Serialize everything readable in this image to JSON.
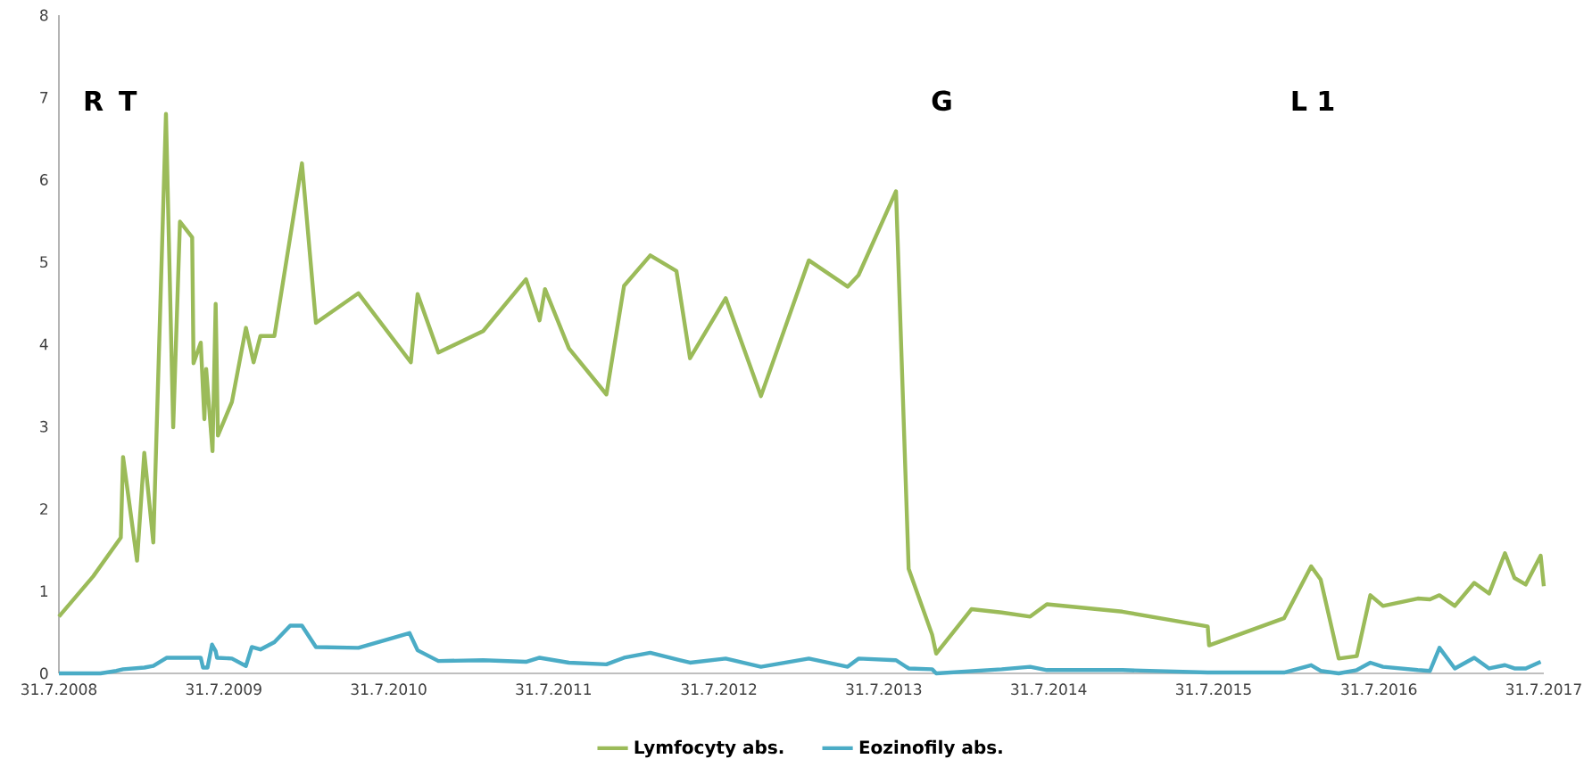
{
  "chart_data": {
    "type": "line",
    "xlim": [
      "2008-07-31",
      "2017-07-31"
    ],
    "xticks": [
      {
        "value": "2008-07-31",
        "label": "31.7.2008"
      },
      {
        "value": "2009-07-31",
        "label": "31.7.2009"
      },
      {
        "value": "2010-07-31",
        "label": "31.7.2010"
      },
      {
        "value": "2011-07-31",
        "label": "31.7.2011"
      },
      {
        "value": "2012-07-31",
        "label": "31.7.2012"
      },
      {
        "value": "2013-07-31",
        "label": "31.7.2013"
      },
      {
        "value": "2014-07-31",
        "label": "31.7.2014"
      },
      {
        "value": "2015-07-31",
        "label": "31.7.2015"
      },
      {
        "value": "2016-07-31",
        "label": "31.7.2016"
      },
      {
        "value": "2017-07-31",
        "label": "31.7.2017"
      }
    ],
    "ylim": [
      0,
      8
    ],
    "yticks": [
      0,
      1,
      2,
      3,
      4,
      5,
      6,
      7,
      8
    ],
    "grid": false,
    "legend": "bottom",
    "marker": "none",
    "line_style": "solid",
    "annotations": [
      "R",
      "T",
      "G",
      "L 1"
    ],
    "series": [
      {
        "name": "Lymfocyty abs.",
        "color": "#9bbb59",
        "x": [
          "2008-07-31",
          "2008-10-15",
          "2008-12-15",
          "2008-12-20",
          "2009-01-20",
          "2009-02-05",
          "2009-02-25",
          "2009-03-25",
          "2009-04-10",
          "2009-04-25",
          "2009-05-22",
          "2009-05-25",
          "2009-06-10",
          "2009-06-18",
          "2009-06-22",
          "2009-07-06",
          "2009-07-13",
          "2009-07-18",
          "2009-08-18",
          "2009-09-18",
          "2009-10-05",
          "2009-10-20",
          "2009-11-20",
          "2010-01-20",
          "2010-02-20",
          "2010-05-25",
          "2010-09-18",
          "2010-10-03",
          "2010-11-18",
          "2011-02-25",
          "2011-05-31",
          "2011-06-30",
          "2011-07-12",
          "2011-09-03",
          "2011-11-25",
          "2012-01-03",
          "2012-03-01",
          "2012-04-28",
          "2012-05-28",
          "2012-08-15",
          "2012-11-01",
          "2013-02-15",
          "2013-05-12",
          "2013-06-05",
          "2013-08-27",
          "2013-09-24",
          "2013-11-15",
          "2013-11-24",
          "2014-02-10",
          "2014-04-18",
          "2014-06-20",
          "2014-07-27",
          "2015-01-10",
          "2015-07-18",
          "2015-07-21",
          "2016-01-03",
          "2016-03-03",
          "2016-03-24",
          "2016-05-03",
          "2016-06-12",
          "2016-07-12",
          "2016-08-09",
          "2016-10-25",
          "2016-11-21",
          "2016-12-12",
          "2017-01-15",
          "2017-02-27",
          "2017-04-01",
          "2017-05-06",
          "2017-05-27",
          "2017-06-21",
          "2017-07-24",
          "2017-07-31"
        ],
        "values": [
          0.69,
          1.18,
          1.65,
          2.63,
          1.37,
          2.68,
          1.59,
          6.8,
          2.99,
          5.49,
          5.3,
          3.77,
          4.02,
          3.09,
          3.7,
          2.7,
          4.49,
          2.89,
          3.3,
          4.2,
          3.78,
          4.1,
          4.1,
          6.2,
          4.26,
          4.62,
          3.78,
          4.61,
          3.9,
          4.16,
          4.79,
          4.29,
          4.67,
          3.95,
          3.39,
          4.71,
          5.08,
          4.89,
          3.83,
          4.56,
          3.37,
          5.02,
          4.7,
          4.84,
          5.86,
          1.27,
          0.47,
          0.24,
          0.78,
          0.74,
          0.69,
          0.84,
          0.75,
          0.57,
          0.34,
          0.67,
          1.3,
          1.14,
          0.18,
          0.21,
          0.95,
          0.82,
          0.91,
          0.9,
          0.95,
          0.82,
          1.1,
          0.97,
          1.46,
          1.16,
          1.08,
          1.43,
          1.06
        ]
      },
      {
        "name": "Eozinofily abs.",
        "color": "#4bacc6",
        "x": [
          "2008-07-31",
          "2008-10-31",
          "2008-12-05",
          "2008-12-20",
          "2009-02-05",
          "2009-02-25",
          "2009-03-27",
          "2009-06-10",
          "2009-06-15",
          "2009-06-25",
          "2009-07-05",
          "2009-07-13",
          "2009-07-16",
          "2009-08-18",
          "2009-09-18",
          "2009-10-01",
          "2009-10-20",
          "2009-11-20",
          "2009-12-25",
          "2010-01-20",
          "2010-02-20",
          "2010-05-25",
          "2010-09-15",
          "2010-10-03",
          "2010-11-18",
          "2011-02-25",
          "2011-05-31",
          "2011-06-30",
          "2011-09-03",
          "2011-11-25",
          "2012-01-03",
          "2012-03-01",
          "2012-05-28",
          "2012-08-15",
          "2012-11-01",
          "2013-02-15",
          "2013-05-12",
          "2013-06-05",
          "2013-08-27",
          "2013-09-24",
          "2013-11-15",
          "2013-11-24",
          "2014-04-18",
          "2014-06-20",
          "2014-07-27",
          "2015-01-10",
          "2015-07-18",
          "2016-01-03",
          "2016-03-03",
          "2016-03-24",
          "2016-05-03",
          "2016-06-12",
          "2016-07-12",
          "2016-08-09",
          "2016-10-25",
          "2016-11-21",
          "2016-12-12",
          "2017-01-15",
          "2017-02-27",
          "2017-04-01",
          "2017-05-06",
          "2017-05-27",
          "2017-06-21",
          "2017-07-24"
        ],
        "values": [
          0.0,
          0.0,
          0.03,
          0.05,
          0.07,
          0.09,
          0.19,
          0.19,
          0.07,
          0.07,
          0.35,
          0.27,
          0.19,
          0.18,
          0.09,
          0.32,
          0.29,
          0.38,
          0.58,
          0.58,
          0.32,
          0.31,
          0.49,
          0.28,
          0.15,
          0.16,
          0.14,
          0.19,
          0.13,
          0.11,
          0.19,
          0.25,
          0.13,
          0.18,
          0.08,
          0.18,
          0.08,
          0.18,
          0.16,
          0.06,
          0.05,
          0.0,
          0.05,
          0.08,
          0.04,
          0.04,
          0.01,
          0.01,
          0.1,
          0.03,
          0.0,
          0.04,
          0.13,
          0.08,
          0.04,
          0.03,
          0.31,
          0.06,
          0.19,
          0.06,
          0.1,
          0.06,
          0.06,
          0.14
        ]
      }
    ]
  }
}
